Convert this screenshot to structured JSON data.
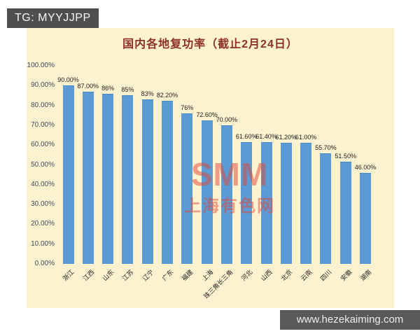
{
  "header": {
    "tg_label": "TG: MYYJJPP"
  },
  "title": "国内各地复功率（截止2月24日）",
  "watermark": {
    "line1": "SMM",
    "line2": "上海有色网"
  },
  "footer": {
    "url": "www.hezekaiming.com"
  },
  "colors": {
    "panel_bg": "#fdf2d0",
    "bar": "#5b9bd5",
    "title": "#8d3126",
    "tag_box_bg": "#4f4f4f",
    "watermark": "#e04634"
  },
  "chart_data": {
    "type": "bar",
    "title": "国内各地复功率（截止2月24日）",
    "categories": [
      "浙江",
      "江西",
      "山东",
      "江苏",
      "辽宁",
      "广东",
      "福建",
      "上海",
      "珠三角长三角",
      "河北",
      "山西",
      "北京",
      "云南",
      "四川",
      "安徽",
      "湖南"
    ],
    "values": [
      90,
      87,
      86,
      85,
      83,
      82.2,
      76,
      72.6,
      70,
      61.6,
      61.4,
      61.2,
      61,
      55.7,
      51.5,
      46
    ],
    "value_labels": [
      "90.00%",
      "87.00%",
      "86%",
      "85%",
      "83%",
      "82.20%",
      "76%",
      "72.60%",
      "70.00%",
      "61.60%",
      "61.40%",
      "61.20%",
      "61.00%",
      "55.70%",
      "51.50%",
      "46.00%"
    ],
    "xlabel": "",
    "ylabel": "",
    "ylim": [
      0,
      100
    ],
    "y_tick_labels": [
      "100.00%",
      "90.00%",
      "80.00%",
      "70.00%",
      "60.00%",
      "50.00%",
      "40.00%",
      "30.00%",
      "20.00%",
      "10.00%",
      "0.00%"
    ],
    "grid": false,
    "legend": false
  }
}
